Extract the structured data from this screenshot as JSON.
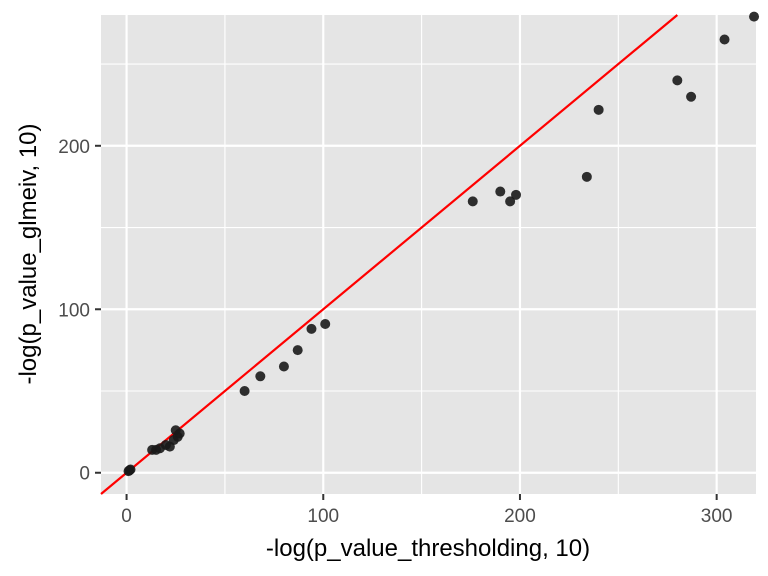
{
  "chart_data": {
    "type": "scatter",
    "xlabel": "-log(p_value_thresholding, 10)",
    "ylabel": "-log(p_value_glmeiv, 10)",
    "xlim": [
      -13,
      320
    ],
    "ylim": [
      -13,
      280
    ],
    "x_ticks": [
      0,
      100,
      200,
      300
    ],
    "y_ticks": [
      0,
      100,
      200
    ],
    "x_tick_labels": [
      "0",
      "100",
      "200",
      "300"
    ],
    "y_tick_labels": [
      "0",
      "100",
      "200"
    ],
    "grid": true,
    "points": [
      {
        "x": 1,
        "y": 1
      },
      {
        "x": 1.5,
        "y": 1.5
      },
      {
        "x": 2,
        "y": 2
      },
      {
        "x": 13,
        "y": 14
      },
      {
        "x": 15,
        "y": 14
      },
      {
        "x": 17,
        "y": 15
      },
      {
        "x": 20,
        "y": 17
      },
      {
        "x": 22,
        "y": 16
      },
      {
        "x": 24,
        "y": 20
      },
      {
        "x": 25,
        "y": 26
      },
      {
        "x": 26,
        "y": 22
      },
      {
        "x": 27,
        "y": 24
      },
      {
        "x": 60,
        "y": 50
      },
      {
        "x": 68,
        "y": 59
      },
      {
        "x": 80,
        "y": 65
      },
      {
        "x": 87,
        "y": 75
      },
      {
        "x": 94,
        "y": 88
      },
      {
        "x": 101,
        "y": 91
      },
      {
        "x": 176,
        "y": 166
      },
      {
        "x": 190,
        "y": 172
      },
      {
        "x": 195,
        "y": 166
      },
      {
        "x": 198,
        "y": 170
      },
      {
        "x": 234,
        "y": 181
      },
      {
        "x": 240,
        "y": 222
      },
      {
        "x": 280,
        "y": 240
      },
      {
        "x": 287,
        "y": 230
      },
      {
        "x": 304,
        "y": 265
      },
      {
        "x": 319,
        "y": 279
      }
    ],
    "reference_line": {
      "slope": 1,
      "intercept": 0,
      "color": "#ff0000"
    },
    "colors": {
      "panel_background": "#e5e5e5",
      "grid_major": "#ffffff",
      "point": "#1a1a1a",
      "tick": "#333333"
    }
  }
}
